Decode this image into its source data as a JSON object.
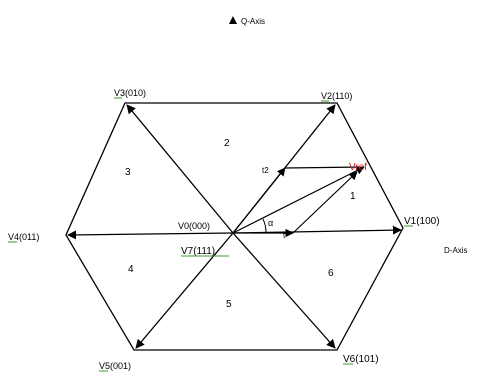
{
  "axes": {
    "q_label": "Q-Axis",
    "d_label": "D-Axis"
  },
  "vectors": {
    "v0": "V0(000)",
    "v1": "V1(100)",
    "v2": "V2(110)",
    "v3": "V3(010)",
    "v4": "V4(011)",
    "v5": "V5(001)",
    "v6": "V6(101)",
    "v7": "V7(111)"
  },
  "sectors": [
    "1",
    "2",
    "3",
    "4",
    "5",
    "6"
  ],
  "annotations": {
    "vref": "Vref",
    "alpha": "α",
    "t1": "t",
    "t2": "t2"
  },
  "colors": {
    "hexagon": "#000000",
    "reference_vector": "#d02020",
    "label_underline": "#3a9a2a"
  }
}
